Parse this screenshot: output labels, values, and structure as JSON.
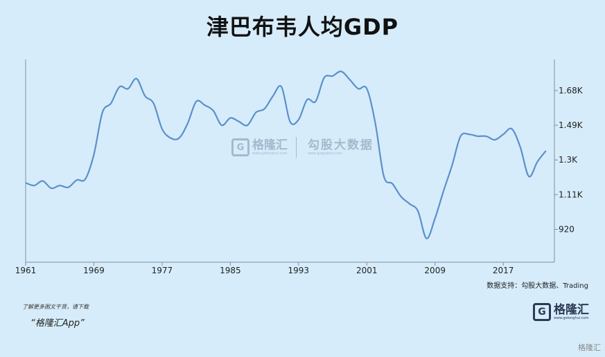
{
  "title": "津巴布韦人均GDP",
  "source_text": "数据支持：勾股大数据、Trading",
  "promo": {
    "line1": "了解更多图文干货，请下载",
    "line2": "“格隆汇App”"
  },
  "brand": {
    "mark": "G",
    "name": "格隆汇",
    "sub": "www.gelonghui.com"
  },
  "watermark": {
    "mark": "G",
    "name1": "格隆汇",
    "sub1": "www.gelonghui.com",
    "name2": "勾股大数据",
    "sub2": "www.gogudata.com"
  },
  "corner_tag": "格隆汇",
  "colors": {
    "background": "#d6ecfa",
    "line": "#5b8fcc",
    "axis": "#7a8fa0"
  },
  "chart_data": {
    "type": "line",
    "title": "津巴布韦人均GDP",
    "xlabel": "",
    "ylabel": "",
    "x_ticks": [
      "1961",
      "1969",
      "1977",
      "1985",
      "1993",
      "2001",
      "2009",
      "2017"
    ],
    "y_ticks": [
      {
        "value": 920,
        "label": "920"
      },
      {
        "value": 1110,
        "label": "1.11K"
      },
      {
        "value": 1300,
        "label": "1.3K"
      },
      {
        "value": 1490,
        "label": "1.49K"
      },
      {
        "value": 1680,
        "label": "1.68K"
      }
    ],
    "xlim": [
      1961,
      2023
    ],
    "ylim": [
      740,
      1850
    ],
    "grid": false,
    "series": [
      {
        "name": "",
        "x": [
          1961,
          1962,
          1963,
          1964,
          1965,
          1966,
          1967,
          1968,
          1969,
          1970,
          1971,
          1972,
          1973,
          1974,
          1975,
          1976,
          1977,
          1978,
          1979,
          1980,
          1981,
          1982,
          1983,
          1984,
          1985,
          1986,
          1987,
          1988,
          1989,
          1990,
          1991,
          1992,
          1993,
          1994,
          1995,
          1996,
          1997,
          1998,
          1999,
          2000,
          2001,
          2002,
          2003,
          2004,
          2005,
          2006,
          2007,
          2008,
          2009,
          2010,
          2011,
          2012,
          2013,
          2014,
          2015,
          2016,
          2017,
          2018,
          2019,
          2020,
          2021,
          2022
        ],
        "y": [
          1175,
          1160,
          1185,
          1145,
          1160,
          1150,
          1190,
          1195,
          1330,
          1560,
          1610,
          1700,
          1690,
          1745,
          1650,
          1610,
          1470,
          1420,
          1420,
          1500,
          1620,
          1600,
          1570,
          1490,
          1530,
          1510,
          1490,
          1560,
          1580,
          1650,
          1700,
          1510,
          1520,
          1630,
          1620,
          1750,
          1760,
          1785,
          1740,
          1690,
          1690,
          1500,
          1210,
          1170,
          1100,
          1060,
          1020,
          870,
          980,
          1130,
          1270,
          1430,
          1440,
          1430,
          1430,
          1410,
          1440,
          1470,
          1370,
          1210,
          1290,
          1350
        ]
      }
    ]
  }
}
